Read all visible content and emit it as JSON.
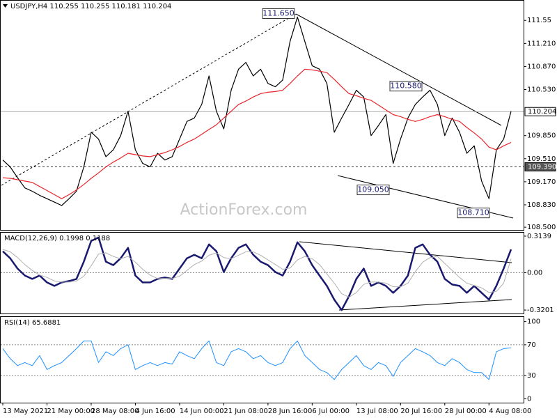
{
  "chart_data": [
    {
      "type": "line",
      "title": "USDJPY,H4  110.255 110.255 110.181 110.204",
      "watermark": "ActionForex.com",
      "categories": [
        "13 May 2021",
        null,
        null,
        null,
        null,
        null,
        "21 May 00:00",
        null,
        null,
        null,
        null,
        null,
        "28 May 08:00",
        null,
        null,
        null,
        null,
        null,
        "4 Jun 16:00",
        null,
        null,
        null,
        null,
        null,
        "14 Jun 00:00",
        null,
        null,
        null,
        null,
        null,
        "21 Jun 08:00",
        null,
        null,
        null,
        null,
        null,
        "28 Jun 16:00",
        null,
        null,
        null,
        null,
        null,
        "6 Jul 00:00",
        null,
        null,
        null,
        null,
        null,
        "13 Jul 08:00",
        null,
        null,
        null,
        null,
        null,
        "20 Jul 16:00",
        null,
        null,
        null,
        null,
        null,
        "28 Jul 00:00",
        null,
        null,
        null,
        null,
        null,
        "4 Aug 08:00",
        null,
        null,
        null
      ],
      "series": [
        {
          "color": "#000000",
          "values": [
            109.49,
            109.39,
            109.23,
            109.08,
            109.03,
            108.97,
            108.92,
            108.87,
            108.82,
            108.92,
            109.03,
            109.39,
            109.9,
            109.8,
            109.54,
            109.64,
            109.85,
            110.21,
            109.64,
            109.44,
            109.39,
            109.59,
            109.49,
            109.54,
            109.8,
            110.06,
            110.11,
            110.31,
            110.73,
            110.21,
            109.95,
            110.52,
            110.83,
            110.93,
            110.73,
            110.83,
            110.62,
            110.57,
            110.67,
            111.24,
            111.6,
            111.24,
            110.88,
            110.83,
            110.62,
            109.9,
            110.11,
            110.31,
            110.52,
            110.42,
            109.85,
            110.0,
            110.16,
            109.44,
            109.8,
            110.11,
            110.31,
            110.42,
            110.52,
            110.31,
            109.85,
            110.11,
            109.9,
            109.59,
            109.7,
            109.18,
            108.92,
            109.64,
            109.8,
            110.21
          ]
        },
        {
          "color": "#e8262d",
          "values": [
            109.23,
            109.22,
            109.2,
            109.18,
            109.16,
            109.1,
            109.04,
            108.98,
            108.92,
            108.98,
            109.05,
            109.13,
            109.22,
            109.3,
            109.39,
            109.46,
            109.52,
            109.59,
            109.57,
            109.55,
            109.54,
            109.57,
            109.6,
            109.64,
            109.69,
            109.75,
            109.8,
            109.87,
            109.94,
            110.01,
            110.11,
            110.21,
            110.31,
            110.36,
            110.42,
            110.47,
            110.49,
            110.5,
            110.52,
            110.62,
            110.73,
            110.83,
            110.82,
            110.8,
            110.78,
            110.68,
            110.57,
            110.47,
            110.44,
            110.4,
            110.37,
            110.3,
            110.23,
            110.16,
            110.13,
            110.09,
            110.06,
            110.09,
            110.13,
            110.16,
            110.13,
            110.09,
            110.06,
            109.97,
            109.89,
            109.8,
            109.68,
            109.64,
            109.7,
            109.75
          ]
        }
      ],
      "ylim": [
        108.46,
        111.84
      ],
      "yticks": [
        {
          "value": 108.5,
          "label": "108.500"
        },
        {
          "value": 108.83,
          "label": "108.830"
        },
        {
          "value": 109.17,
          "label": "109.170"
        },
        {
          "value": 109.51,
          "label": "109.510"
        },
        {
          "value": 109.85,
          "label": "109.850"
        },
        {
          "value": 110.53,
          "label": "110.530"
        },
        {
          "value": 110.87,
          "label": "110.870"
        },
        {
          "value": 111.21,
          "label": "111.210"
        },
        111.55
      ],
      "grid": false,
      "levels": [
        {
          "value": 110.204,
          "label": "110.204"
        },
        {
          "value": 109.39,
          "label": "109.390"
        }
      ],
      "annotations": [
        {
          "value": 111.65,
          "label": "111.650"
        },
        {
          "value": 110.58,
          "label": "110.580"
        },
        {
          "value": 109.05,
          "label": "109.050"
        },
        {
          "value": 108.71,
          "label": "108.710"
        }
      ]
    },
    {
      "type": "line",
      "title": "MACD(12,26,9) 0.1998 0.1188",
      "series": [
        {
          "color": "#191970",
          "values": [
            0.184,
            0.124,
            0.036,
            -0.024,
            -0.053,
            -0.024,
            -0.083,
            -0.113,
            -0.083,
            -0.071,
            -0.053,
            0.095,
            0.273,
            0.302,
            0.095,
            0.065,
            0.124,
            0.213,
            -0.024,
            -0.083,
            -0.083,
            -0.053,
            -0.041,
            -0.053,
            0.036,
            0.124,
            0.154,
            0.124,
            0.243,
            0.184,
            0.006,
            0.124,
            0.213,
            0.243,
            0.154,
            0.095,
            0.065,
            0.006,
            -0.024,
            0.095,
            0.261,
            0.184,
            0.065,
            -0.024,
            -0.113,
            -0.231,
            -0.32,
            -0.201,
            -0.053,
            0.036,
            -0.113,
            -0.083,
            -0.113,
            -0.172,
            -0.113,
            -0.024,
            0.213,
            0.243,
            0.154,
            0.095,
            -0.053,
            -0.101,
            -0.113,
            -0.172,
            -0.113,
            -0.172,
            -0.231,
            -0.113,
            0.036,
            0.2
          ]
        },
        {
          "color": "#b0b0b0",
          "values": [
            0.2,
            0.18,
            0.13,
            0.07,
            0.02,
            -0.02,
            -0.04,
            -0.07,
            -0.08,
            -0.08,
            -0.07,
            -0.03,
            0.06,
            0.16,
            0.17,
            0.14,
            0.12,
            0.14,
            0.09,
            0.03,
            -0.02,
            -0.05,
            -0.05,
            -0.05,
            -0.03,
            0.02,
            0.07,
            0.1,
            0.15,
            0.17,
            0.13,
            0.12,
            0.15,
            0.18,
            0.18,
            0.15,
            0.11,
            0.07,
            0.03,
            0.04,
            0.11,
            0.14,
            0.12,
            0.07,
            -0.01,
            -0.09,
            -0.18,
            -0.21,
            -0.17,
            -0.1,
            -0.08,
            -0.08,
            -0.09,
            -0.12,
            -0.12,
            -0.09,
            0.01,
            0.09,
            0.13,
            0.14,
            0.08,
            0.02,
            -0.04,
            -0.09,
            -0.11,
            -0.13,
            -0.17,
            -0.16,
            -0.09,
            0.12
          ]
        }
      ],
      "ylim": [
        -0.3497,
        0.3435
      ],
      "yticks": [
        -0.3201,
        {
          "value": 0,
          "label": "0.00"
        },
        0.3139
      ],
      "grid": true
    },
    {
      "type": "line",
      "title": "RSI(14) 65.6881",
      "series": [
        {
          "color": "#1e90ff",
          "values": [
            65,
            52,
            43,
            47,
            43,
            56,
            38,
            43,
            47,
            56,
            65,
            75,
            75,
            47,
            61,
            56,
            65,
            70,
            38,
            43,
            47,
            43,
            47,
            45,
            61,
            56,
            52,
            65,
            75,
            47,
            43,
            61,
            65,
            61,
            52,
            56,
            47,
            43,
            47,
            65,
            75,
            56,
            47,
            38,
            34,
            25,
            38,
            47,
            56,
            43,
            38,
            47,
            43,
            29,
            47,
            56,
            65,
            61,
            56,
            47,
            43,
            52,
            47,
            38,
            34,
            34,
            25,
            61,
            65,
            66
          ]
        }
      ],
      "ylim": [
        -5,
        106
      ],
      "yticks": [
        0,
        30,
        70,
        100
      ],
      "grid": true
    }
  ]
}
